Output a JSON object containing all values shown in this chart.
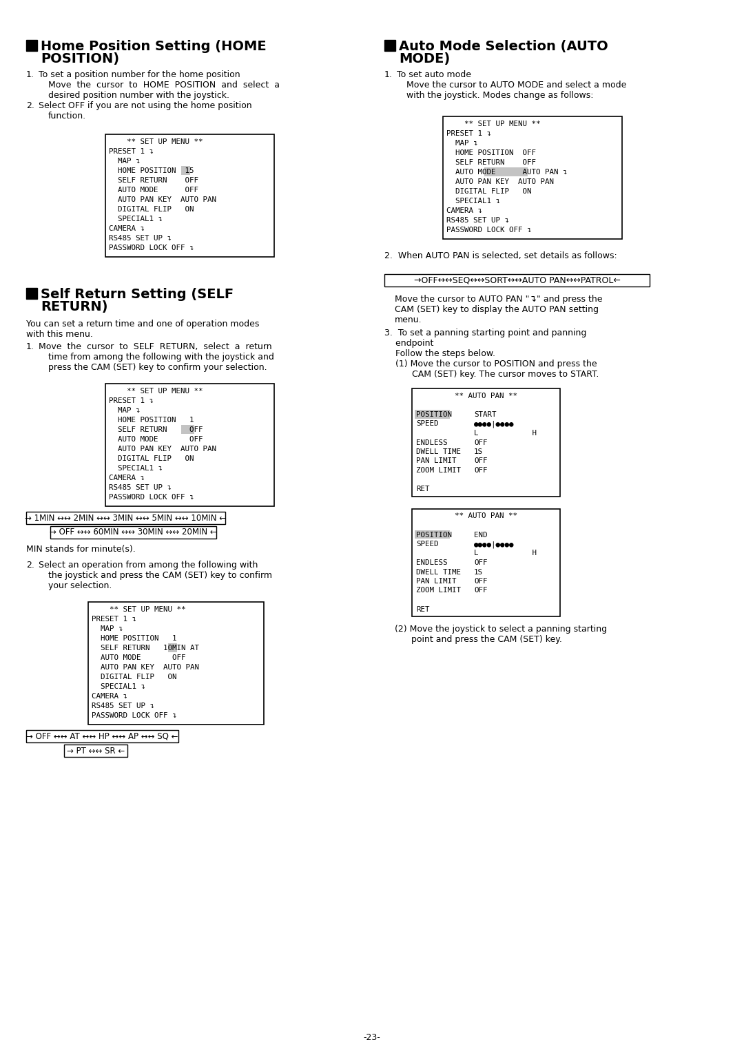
{
  "bg": "#ffffff",
  "page_num": "-23-",
  "s1_title1": "Home Position Setting (HOME",
  "s1_title2": "POSITION)",
  "s1_body": [
    [
      "1.",
      "To set a position number for the home position"
    ],
    [
      "",
      "Move  the  cursor  to  HOME  POSITION  and  select  a"
    ],
    [
      "",
      "desired position number with the joystick."
    ],
    [
      "2.",
      "Select OFF if you are not using the home position"
    ],
    [
      "",
      "function."
    ]
  ],
  "menu1": [
    "    ** SET UP MENU **",
    "PRESET 1 ↴",
    "  MAP ↴",
    "  HOME POSITION  15",
    "  SELF RETURN    OFF",
    "  AUTO MODE      OFF",
    "  AUTO PAN KEY  AUTO PAN",
    "  DIGITAL FLIP   ON",
    "  SPECIAL1 ↴",
    "CAMERA ↴",
    "RS485 SET UP ↴",
    "PASSWORD LOCK OFF ↴"
  ],
  "menu1_hl": [
    3,
    17,
    2
  ],
  "s2_title1": "Auto Mode Selection (AUTO",
  "s2_title2": "MODE)",
  "s2_body": [
    [
      "1.",
      "To set auto mode"
    ],
    [
      "",
      "Move the cursor to AUTO MODE and select a mode"
    ],
    [
      "",
      "with the joystick. Modes change as follows:"
    ]
  ],
  "menu2": [
    "    ** SET UP MENU **",
    "PRESET 1 ↴",
    "  MAP ↴",
    "  HOME POSITION  OFF",
    "  SELF RETURN    OFF",
    "  AUTO MODE      AUTO PAN ↴",
    "  AUTO PAN KEY  AUTO PAN",
    "  DIGITAL FLIP   ON",
    "  SPECIAL1 ↴",
    "CAMERA ↴",
    "RS485 SET UP ↴",
    "PASSWORD LOCK OFF ↴"
  ],
  "menu2_hl": [
    5,
    9,
    10
  ],
  "s2_note": "2.  When AUTO PAN is selected, set details as follows:",
  "seq_arrow": "→ OFF↔↔SEQ↔↔SORT↔↔AUTO PAN↔↔PATROL←",
  "seq_arrow_display": "→OFF↔↔SEQ↔↔SORT↔↔AUTO PAN↔↔PATROL←",
  "ap_desc": [
    "Move the cursor to AUTO PAN \"↴\" and press the",
    "CAM (SET) key to display the AUTO PAN setting",
    "menu."
  ],
  "step3": [
    "3.  To set a panning starting point and panning",
    "    endpoint",
    "    Follow the steps below.",
    "    (1) Move the cursor to POSITION and press the",
    "          CAM (SET) key. The cursor moves to START."
  ],
  "ap_box1_rows": [
    [
      "POSITION",
      "START",
      true
    ],
    [
      "SPEED",
      "●●●●|●●●●",
      false
    ],
    [
      "",
      "L            H",
      false
    ],
    [
      "ENDLESS",
      "OFF",
      false
    ],
    [
      "DWELL TIME",
      "1S",
      false
    ],
    [
      "PAN LIMIT",
      "OFF",
      false
    ],
    [
      "ZOOM LIMIT",
      "OFF",
      false
    ],
    [
      "",
      "",
      false
    ],
    [
      "RET",
      "",
      false
    ]
  ],
  "ap_box2_rows": [
    [
      "POSITION",
      "END",
      true
    ],
    [
      "SPEED",
      "●●●●|●●●●",
      false
    ],
    [
      "",
      "L            H",
      false
    ],
    [
      "ENDLESS",
      "OFF",
      false
    ],
    [
      "DWELL TIME",
      "1S",
      false
    ],
    [
      "PAN LIMIT",
      "OFF",
      false
    ],
    [
      "ZOOM LIMIT",
      "OFF",
      false
    ],
    [
      "",
      "",
      false
    ],
    [
      "RET",
      "",
      false
    ]
  ],
  "step2_note": [
    "(2) Move the joystick to select a panning starting",
    "      point and press the CAM (SET) key."
  ],
  "s3_title1": "Self Return Setting (SELF",
  "s3_title2": "RETURN)",
  "s3_intro": [
    "You can set a return time and one of operation modes",
    "with this menu."
  ],
  "s3_body1": [
    [
      "1.",
      "Move  the  cursor  to  SELF  RETURN,  select  a  return"
    ],
    [
      "",
      "time from among the following with the joystick and"
    ],
    [
      "",
      "press the CAM (SET) key to confirm your selection."
    ]
  ],
  "menu3": [
    "    ** SET UP MENU **",
    "PRESET 1 ↴",
    "  MAP ↴",
    "  HOME POSITION   1",
    "  SELF RETURN     OFF",
    "  AUTO MODE       OFF",
    "  AUTO PAN KEY  AUTO PAN",
    "  DIGITAL FLIP   ON",
    "  SPECIAL1 ↴",
    "CAMERA ↴",
    "RS485 SET UP ↴",
    "PASSWORD LOCK OFF ↴"
  ],
  "menu3_hl": [
    4,
    17,
    3
  ],
  "time_arrows": [
    [
      0,
      "→ 1MIN ↔↔ 2MIN ↔↔ 3MIN ↔↔ 5MIN ↔↔ 10MIN ←"
    ],
    [
      35,
      "→ OFF ↔↔ 60MIN ↔↔ 30MIN ↔↔ 20MIN ←"
    ]
  ],
  "min_note": "MIN stands for minute(s).",
  "s3_body2": [
    [
      "2.",
      "Select an operation from among the following with"
    ],
    [
      "",
      "the joystick and press the CAM (SET) key to confirm"
    ],
    [
      "",
      "your selection."
    ]
  ],
  "menu4": [
    "    ** SET UP MENU **",
    "PRESET 1 ↴",
    "  MAP ↴",
    "  HOME POSITION   1",
    "  SELF RETURN   10MIN AT",
    "  AUTO MODE       OFF",
    "  AUTO PAN KEY  AUTO PAN",
    "  DIGITAL FLIP   ON",
    "  SPECIAL1 ↴",
    "CAMERA ↴",
    "RS485 SET UP ↴",
    "PASSWORD LOCK OFF ↴"
  ],
  "menu4_hl": [
    4,
    18,
    2
  ],
  "mode_arrows": [
    [
      0,
      "→ OFF ↔↔ AT ↔↔ HP ↔↔ AP ↔↔ SQ ←"
    ],
    [
      55,
      "→ PT ↔↔ SR ←"
    ]
  ]
}
